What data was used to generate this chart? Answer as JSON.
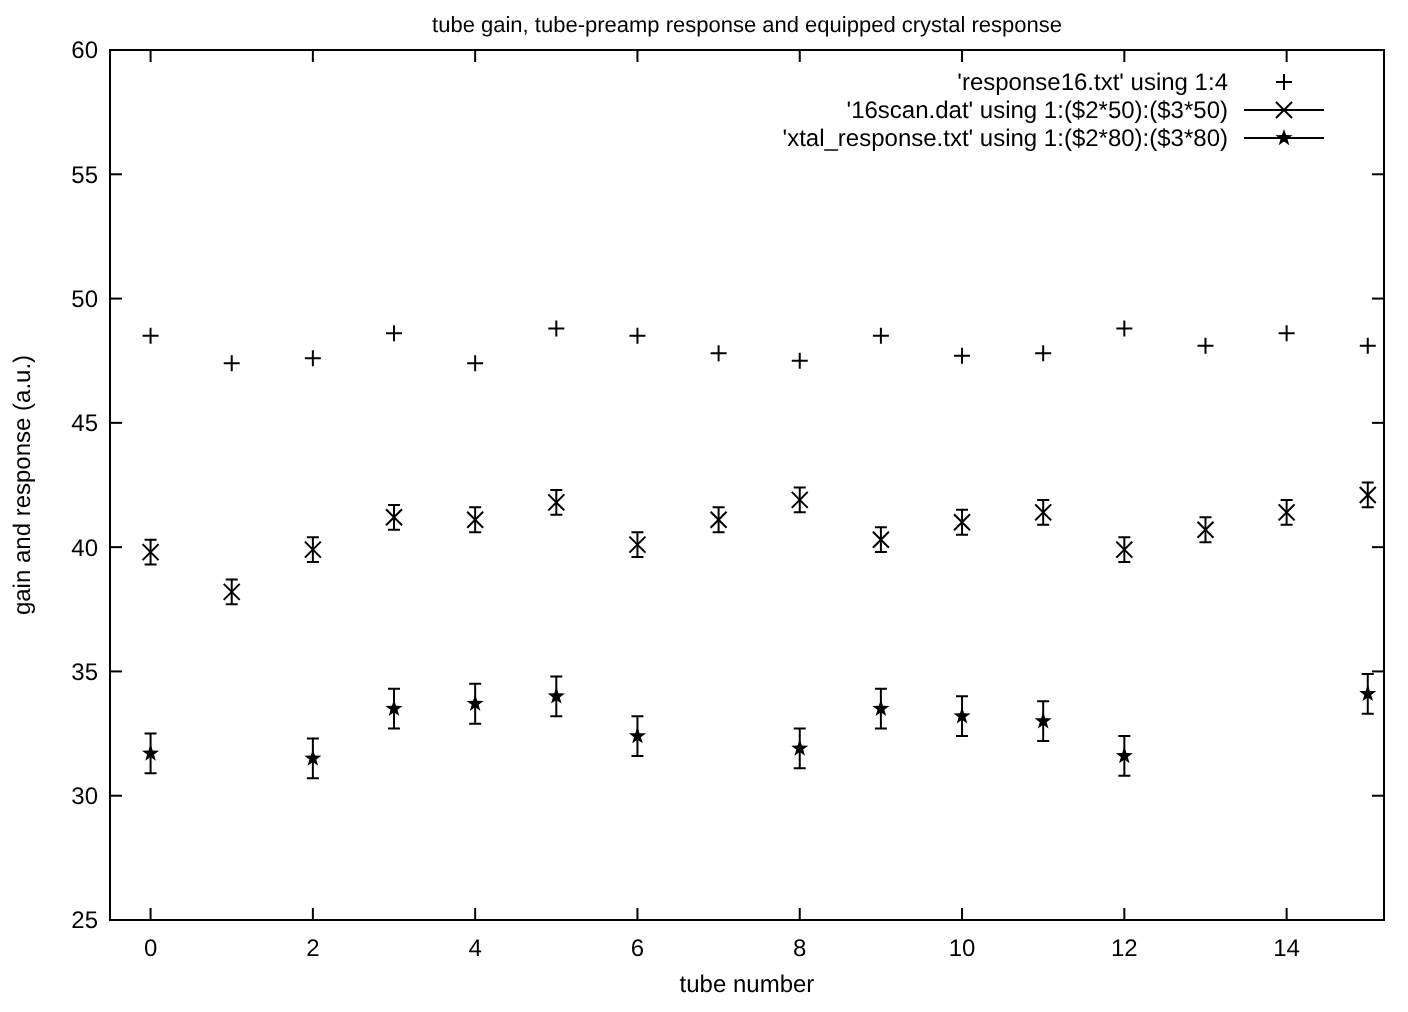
{
  "chart_data": {
    "type": "scatter",
    "title": "tube gain, tube-preamp response and equipped crystal response",
    "xlabel": "tube number",
    "ylabel": "gain and response (a.u.)",
    "xlim": [
      -0.5,
      15.2
    ],
    "ylim": [
      25,
      60
    ],
    "xticks": [
      0,
      2,
      4,
      6,
      8,
      10,
      12,
      14
    ],
    "yticks": [
      25,
      30,
      35,
      40,
      45,
      50,
      55,
      60
    ],
    "grid": false,
    "legend": "top right",
    "series": [
      {
        "name": "'response16.txt' using 1:4",
        "color": "#000000",
        "marker": "plus",
        "x": [
          0,
          1,
          2,
          3,
          4,
          5,
          6,
          7,
          8,
          9,
          10,
          11,
          12,
          13,
          14,
          15
        ],
        "values": [
          48.5,
          47.4,
          47.6,
          48.6,
          47.4,
          48.8,
          48.5,
          47.8,
          47.5,
          48.5,
          47.7,
          47.8,
          48.8,
          48.1,
          48.6,
          48.1
        ]
      },
      {
        "name": "'16scan.dat' using 1:($2*50):($3*50)",
        "color": "#000000",
        "marker": "cross",
        "x": [
          0,
          1,
          2,
          3,
          4,
          5,
          6,
          7,
          8,
          9,
          10,
          11,
          12,
          13,
          14,
          15
        ],
        "values": [
          39.8,
          38.2,
          39.9,
          41.2,
          41.1,
          41.8,
          40.1,
          41.1,
          41.9,
          40.3,
          41.0,
          41.4,
          39.9,
          40.7,
          41.4,
          42.1
        ],
        "errors": [
          0.5,
          0.5,
          0.5,
          0.5,
          0.5,
          0.5,
          0.5,
          0.5,
          0.5,
          0.5,
          0.5,
          0.5,
          0.5,
          0.5,
          0.5,
          0.5
        ]
      },
      {
        "name": "'xtal_response.txt' using 1:($2*80):($3*80)",
        "color": "#000000",
        "marker": "star",
        "x": [
          0,
          2,
          3,
          4,
          5,
          6,
          8,
          9,
          10,
          11,
          12,
          15
        ],
        "values": [
          31.7,
          31.5,
          33.5,
          33.7,
          34.0,
          32.4,
          31.9,
          33.5,
          33.2,
          33.0,
          31.6,
          34.1
        ],
        "errors": [
          0.8,
          0.8,
          0.8,
          0.8,
          0.8,
          0.8,
          0.8,
          0.8,
          0.8,
          0.8,
          0.8,
          0.8
        ]
      }
    ]
  }
}
